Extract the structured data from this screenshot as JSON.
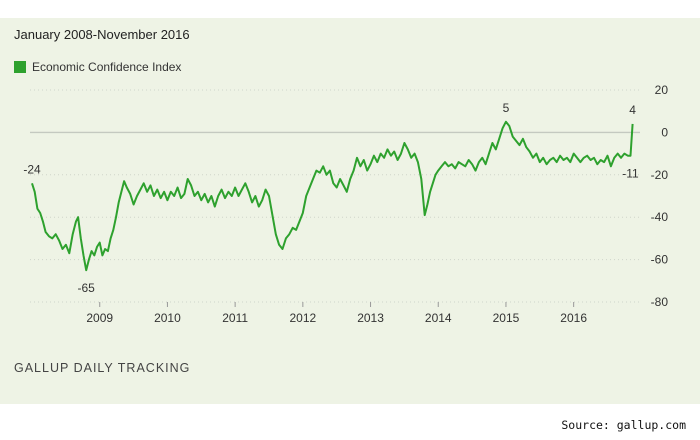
{
  "chart_data": {
    "type": "line",
    "subtitle": "January 2008-November 2016",
    "footer": "GALLUP DAILY TRACKING",
    "source": "Source: gallup.com",
    "series": [
      {
        "name": "Economic Confidence Index",
        "color": "#2ea12e",
        "values": [
          [
            2008.0,
            -24
          ],
          [
            2008.04,
            -28
          ],
          [
            2008.08,
            -36
          ],
          [
            2008.12,
            -38
          ],
          [
            2008.16,
            -42
          ],
          [
            2008.2,
            -47
          ],
          [
            2008.25,
            -49
          ],
          [
            2008.3,
            -50
          ],
          [
            2008.35,
            -48
          ],
          [
            2008.4,
            -51
          ],
          [
            2008.45,
            -55
          ],
          [
            2008.5,
            -53
          ],
          [
            2008.55,
            -57
          ],
          [
            2008.6,
            -48
          ],
          [
            2008.65,
            -42
          ],
          [
            2008.68,
            -40
          ],
          [
            2008.72,
            -50
          ],
          [
            2008.76,
            -58
          ],
          [
            2008.8,
            -65
          ],
          [
            2008.84,
            -60
          ],
          [
            2008.88,
            -56
          ],
          [
            2008.92,
            -58
          ],
          [
            2008.96,
            -54
          ],
          [
            2009.0,
            -52
          ],
          [
            2009.04,
            -58
          ],
          [
            2009.08,
            -55
          ],
          [
            2009.12,
            -56
          ],
          [
            2009.16,
            -50
          ],
          [
            2009.2,
            -46
          ],
          [
            2009.24,
            -40
          ],
          [
            2009.28,
            -33
          ],
          [
            2009.32,
            -28
          ],
          [
            2009.36,
            -23
          ],
          [
            2009.4,
            -26
          ],
          [
            2009.45,
            -29
          ],
          [
            2009.5,
            -34
          ],
          [
            2009.55,
            -30
          ],
          [
            2009.6,
            -27
          ],
          [
            2009.65,
            -24
          ],
          [
            2009.7,
            -28
          ],
          [
            2009.75,
            -25
          ],
          [
            2009.8,
            -30
          ],
          [
            2009.85,
            -27
          ],
          [
            2009.9,
            -31
          ],
          [
            2009.95,
            -28
          ],
          [
            2010.0,
            -32
          ],
          [
            2010.05,
            -28
          ],
          [
            2010.1,
            -30
          ],
          [
            2010.15,
            -26
          ],
          [
            2010.2,
            -31
          ],
          [
            2010.25,
            -29
          ],
          [
            2010.3,
            -22
          ],
          [
            2010.35,
            -25
          ],
          [
            2010.4,
            -30
          ],
          [
            2010.45,
            -28
          ],
          [
            2010.5,
            -32
          ],
          [
            2010.55,
            -29
          ],
          [
            2010.6,
            -33
          ],
          [
            2010.65,
            -30
          ],
          [
            2010.7,
            -35
          ],
          [
            2010.75,
            -30
          ],
          [
            2010.8,
            -27
          ],
          [
            2010.85,
            -31
          ],
          [
            2010.9,
            -28
          ],
          [
            2010.95,
            -30
          ],
          [
            2011.0,
            -26
          ],
          [
            2011.05,
            -30
          ],
          [
            2011.1,
            -27
          ],
          [
            2011.15,
            -24
          ],
          [
            2011.2,
            -28
          ],
          [
            2011.25,
            -33
          ],
          [
            2011.3,
            -30
          ],
          [
            2011.35,
            -35
          ],
          [
            2011.4,
            -32
          ],
          [
            2011.45,
            -27
          ],
          [
            2011.5,
            -30
          ],
          [
            2011.55,
            -39
          ],
          [
            2011.6,
            -48
          ],
          [
            2011.65,
            -53
          ],
          [
            2011.7,
            -55
          ],
          [
            2011.75,
            -50
          ],
          [
            2011.8,
            -48
          ],
          [
            2011.85,
            -45
          ],
          [
            2011.9,
            -46
          ],
          [
            2011.95,
            -42
          ],
          [
            2012.0,
            -38
          ],
          [
            2012.05,
            -30
          ],
          [
            2012.1,
            -26
          ],
          [
            2012.15,
            -22
          ],
          [
            2012.2,
            -18
          ],
          [
            2012.25,
            -19
          ],
          [
            2012.3,
            -16
          ],
          [
            2012.35,
            -20
          ],
          [
            2012.4,
            -18
          ],
          [
            2012.45,
            -24
          ],
          [
            2012.5,
            -26
          ],
          [
            2012.55,
            -22
          ],
          [
            2012.6,
            -25
          ],
          [
            2012.65,
            -28
          ],
          [
            2012.7,
            -22
          ],
          [
            2012.75,
            -18
          ],
          [
            2012.8,
            -12
          ],
          [
            2012.85,
            -16
          ],
          [
            2012.9,
            -13
          ],
          [
            2012.95,
            -18
          ],
          [
            2013.0,
            -15
          ],
          [
            2013.05,
            -11
          ],
          [
            2013.1,
            -14
          ],
          [
            2013.15,
            -10
          ],
          [
            2013.2,
            -12
          ],
          [
            2013.25,
            -8
          ],
          [
            2013.3,
            -11
          ],
          [
            2013.35,
            -9
          ],
          [
            2013.4,
            -13
          ],
          [
            2013.45,
            -10
          ],
          [
            2013.5,
            -5
          ],
          [
            2013.55,
            -8
          ],
          [
            2013.6,
            -12
          ],
          [
            2013.65,
            -10
          ],
          [
            2013.7,
            -14
          ],
          [
            2013.75,
            -22
          ],
          [
            2013.8,
            -39
          ],
          [
            2013.84,
            -34
          ],
          [
            2013.88,
            -28
          ],
          [
            2013.92,
            -24
          ],
          [
            2013.96,
            -20
          ],
          [
            2014.0,
            -18
          ],
          [
            2014.05,
            -16
          ],
          [
            2014.1,
            -14
          ],
          [
            2014.15,
            -16
          ],
          [
            2014.2,
            -15
          ],
          [
            2014.25,
            -17
          ],
          [
            2014.3,
            -14
          ],
          [
            2014.35,
            -15
          ],
          [
            2014.4,
            -16
          ],
          [
            2014.45,
            -13
          ],
          [
            2014.5,
            -15
          ],
          [
            2014.55,
            -18
          ],
          [
            2014.6,
            -14
          ],
          [
            2014.65,
            -12
          ],
          [
            2014.7,
            -15
          ],
          [
            2014.75,
            -10
          ],
          [
            2014.8,
            -5
          ],
          [
            2014.85,
            -8
          ],
          [
            2014.9,
            -3
          ],
          [
            2014.95,
            2
          ],
          [
            2015.0,
            5
          ],
          [
            2015.05,
            3
          ],
          [
            2015.1,
            -2
          ],
          [
            2015.15,
            -4
          ],
          [
            2015.2,
            -6
          ],
          [
            2015.25,
            -3
          ],
          [
            2015.3,
            -7
          ],
          [
            2015.35,
            -9
          ],
          [
            2015.4,
            -12
          ],
          [
            2015.45,
            -10
          ],
          [
            2015.5,
            -14
          ],
          [
            2015.55,
            -12
          ],
          [
            2015.6,
            -15
          ],
          [
            2015.65,
            -13
          ],
          [
            2015.7,
            -12
          ],
          [
            2015.75,
            -14
          ],
          [
            2015.8,
            -11
          ],
          [
            2015.85,
            -13
          ],
          [
            2015.9,
            -12
          ],
          [
            2015.95,
            -14
          ],
          [
            2016.0,
            -10
          ],
          [
            2016.05,
            -12
          ],
          [
            2016.1,
            -14
          ],
          [
            2016.15,
            -12
          ],
          [
            2016.2,
            -11
          ],
          [
            2016.25,
            -13
          ],
          [
            2016.3,
            -12
          ],
          [
            2016.35,
            -15
          ],
          [
            2016.4,
            -13
          ],
          [
            2016.45,
            -14
          ],
          [
            2016.5,
            -11
          ],
          [
            2016.55,
            -16
          ],
          [
            2016.6,
            -12
          ],
          [
            2016.65,
            -10
          ],
          [
            2016.7,
            -12
          ],
          [
            2016.75,
            -10
          ],
          [
            2016.8,
            -11
          ],
          [
            2016.84,
            -11
          ],
          [
            2016.87,
            4
          ]
        ]
      }
    ],
    "x_ticks": [
      2009,
      2010,
      2011,
      2012,
      2013,
      2014,
      2015,
      2016
    ],
    "x_tick_labels": [
      "2009",
      "2010",
      "2011",
      "2012",
      "2013",
      "2014",
      "2015",
      "2016"
    ],
    "xlim": [
      2007.97,
      2016.98
    ],
    "y_ticks": [
      20,
      0,
      -20,
      -40,
      -60,
      -80
    ],
    "y_tick_labels": [
      "20",
      "0",
      "-20",
      "-40",
      "-60",
      "-80"
    ],
    "ylim": [
      -80,
      20
    ],
    "grid": "horizontal dotted, solid zero line",
    "legend": "top-left",
    "annotations": [
      {
        "text": "-24",
        "x": 2008.0,
        "y": -24,
        "pos": "above"
      },
      {
        "text": "-65",
        "x": 2008.8,
        "y": -65,
        "pos": "below"
      },
      {
        "text": "5",
        "x": 2015.0,
        "y": 5,
        "pos": "above"
      },
      {
        "text": "4",
        "x": 2016.87,
        "y": 4,
        "pos": "above"
      },
      {
        "text": "-11",
        "x": 2016.84,
        "y": -11,
        "pos": "below"
      }
    ]
  }
}
